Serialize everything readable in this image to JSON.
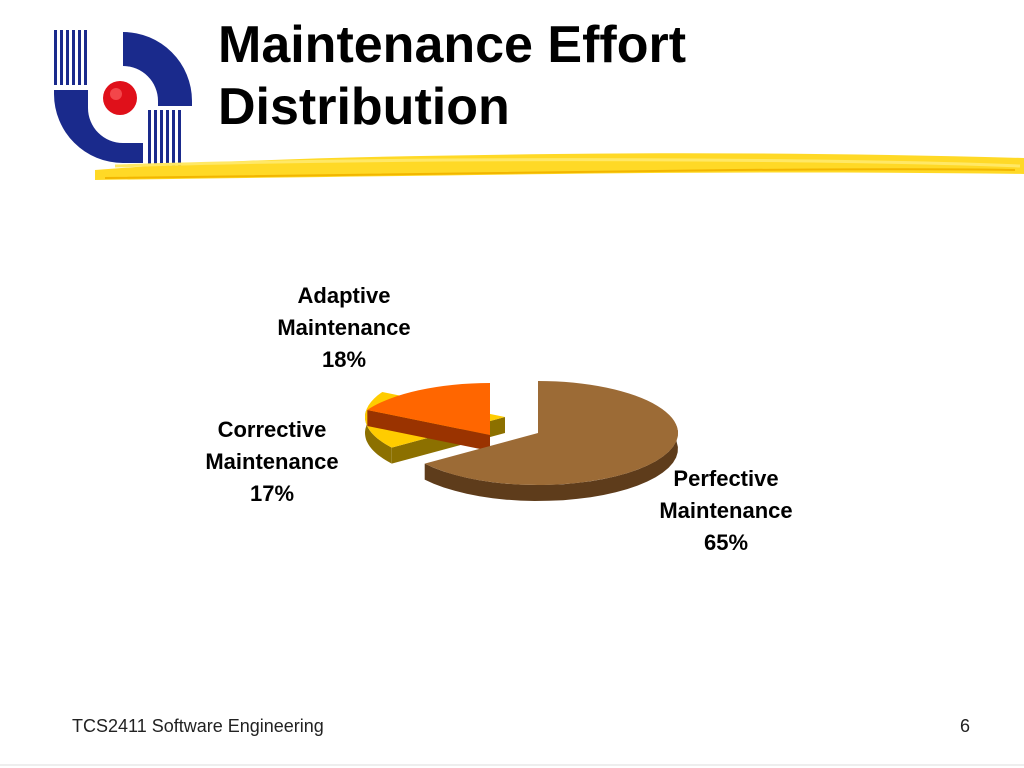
{
  "slide": {
    "title_lines": [
      "Maintenance Effort",
      "Distribution"
    ],
    "footer_left": "TCS2411 Software Engineering",
    "footer_right": "6",
    "logo_icon": "university-logo-icon"
  },
  "chart_data": {
    "type": "pie",
    "title": "",
    "series": [
      {
        "values": [
          65,
          18,
          17
        ],
        "categories": [
          "Perfective Maintenance",
          "Adaptive Maintenance",
          "Corrective Maintenance"
        ]
      }
    ],
    "slices": [
      {
        "label_line1": "Perfective",
        "label_line2": "Maintenance",
        "percent_text": "65%",
        "value": 65,
        "color": "#9c6b36",
        "side_color": "#5e3c1b"
      },
      {
        "label_line1": "Adaptive",
        "label_line2": "Maintenance",
        "percent_text": "18%",
        "value": 18,
        "color": "#ffcc00",
        "side_color": "#8c7000"
      },
      {
        "label_line1": "Corrective",
        "label_line2": "Maintenance",
        "percent_text": "17%",
        "value": 17,
        "color": "#ff6600",
        "side_color": "#9a3300"
      }
    ],
    "style": "3d-exploded",
    "legend": "none"
  }
}
